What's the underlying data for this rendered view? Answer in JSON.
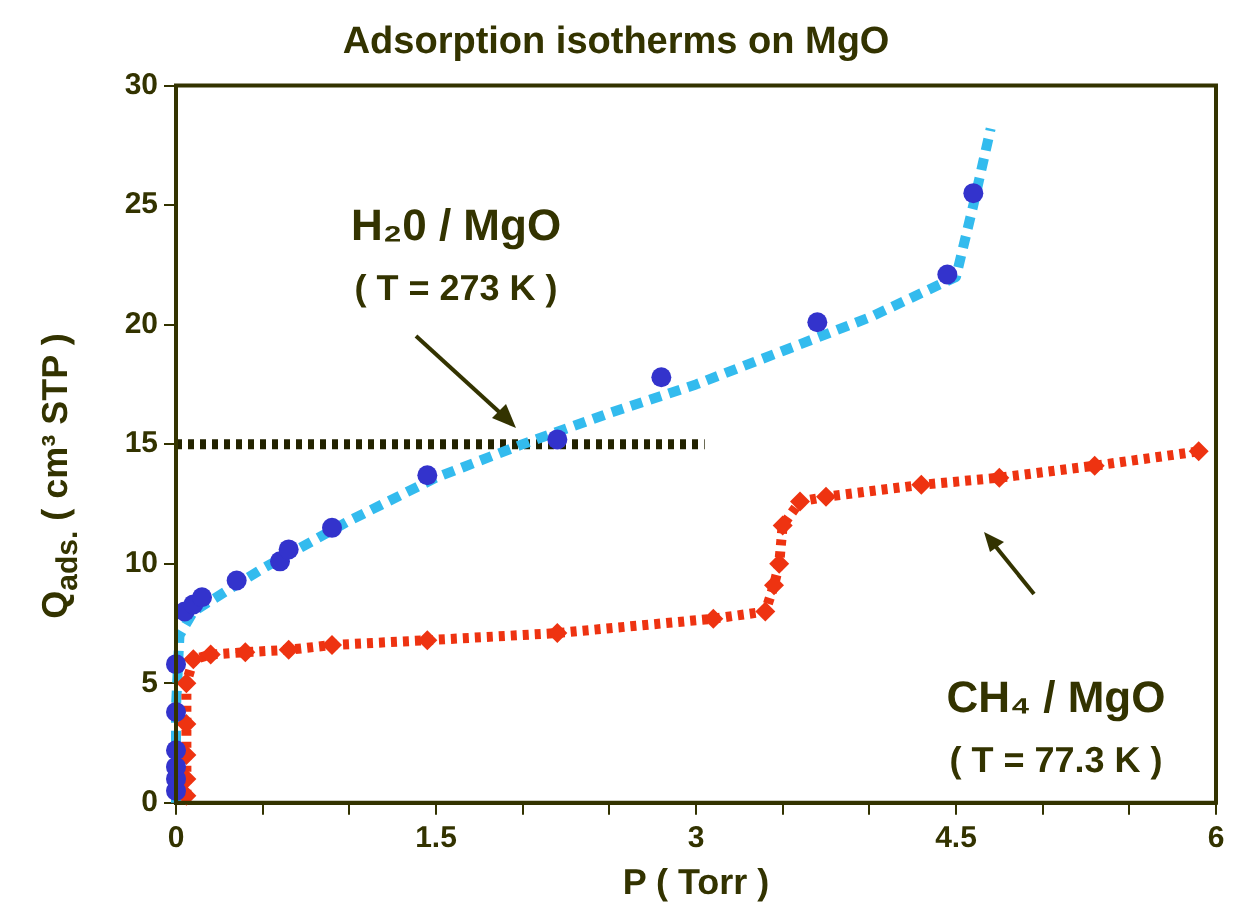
{
  "chart_data": {
    "type": "scatter",
    "title": "Adsorption isotherms on MgO",
    "xlabel": "P ( Torr )",
    "ylabel": "Q$_{ads.}$ ( cm³ STP )",
    "xlim": [
      0,
      6
    ],
    "xticks": [
      0,
      {
        "value": 0.5,
        "label": null
      },
      {
        "value": 1,
        "label": null
      },
      1.5,
      {
        "value": 2,
        "label": null
      },
      {
        "value": 2.5,
        "label": null
      },
      3,
      {
        "value": 3.5,
        "label": null
      },
      {
        "value": 4,
        "label": null
      },
      4.5,
      {
        "value": 5,
        "label": null
      },
      {
        "value": 5.5,
        "label": null
      },
      6
    ],
    "ylim": [
      0,
      30
    ],
    "yticks": [
      0,
      5,
      10,
      15,
      20,
      25,
      30
    ],
    "grid": false,
    "legend": false,
    "series": [
      {
        "type": "line",
        "color": "#33bbee",
        "marker": "none",
        "line_style": "dashed",
        "x": [
          0,
          0,
          0.02,
          0.1,
          0.5,
          1,
          1.5,
          2,
          2.5,
          3,
          3.5,
          4,
          4.5,
          4.6,
          4.7
        ],
        "values": [
          0,
          4,
          7,
          8,
          9.8,
          11.8,
          13.6,
          15,
          16.3,
          17.5,
          18.9,
          20.3,
          22,
          25,
          28.2
        ]
      },
      {
        "color": "#3333cc",
        "marker": "circle",
        "x": [
          0,
          0,
          0,
          0,
          0,
          0,
          0.05,
          0.1,
          0.15,
          0.35,
          0.6,
          0.65,
          0.9,
          1.45,
          2.2,
          2.8,
          3.7,
          4.45,
          4.6
        ],
        "values": [
          0.5,
          1,
          1.5,
          2.2,
          3.8,
          5.8,
          8,
          8.3,
          8.6,
          9.3,
          10.1,
          10.6,
          11.5,
          13.7,
          15.2,
          17.8,
          20.1,
          22.1,
          25.5
        ]
      },
      {
        "type": "line",
        "color": "#ee3311",
        "marker": "diamond",
        "line_style": "dotted",
        "x": [
          0.06,
          0.06,
          0.06,
          0.06,
          0.06,
          0.1,
          0.2,
          0.4,
          0.65,
          0.9,
          1.45,
          2.2,
          3.1,
          3.4,
          3.45,
          3.48,
          3.5,
          3.6,
          3.75,
          4.3,
          4.75,
          5.3,
          5.9
        ],
        "values": [
          0.3,
          1,
          2,
          3.3,
          5,
          6,
          6.2,
          6.3,
          6.4,
          6.6,
          6.8,
          7.1,
          7.7,
          8,
          9.1,
          10,
          11.6,
          12.6,
          12.8,
          13.3,
          13.6,
          14.1,
          14.7
        ]
      },
      {
        "type": "line",
        "color": "#222200",
        "marker": "none",
        "line_style": "dotted",
        "x": [
          0,
          3.05
        ],
        "values": [
          15,
          15
        ]
      }
    ],
    "annotations": [
      "H₂0 / MgO",
      "( T = 273 K )",
      "CH₄ / MgO",
      "( T = 77.3 K )"
    ]
  }
}
